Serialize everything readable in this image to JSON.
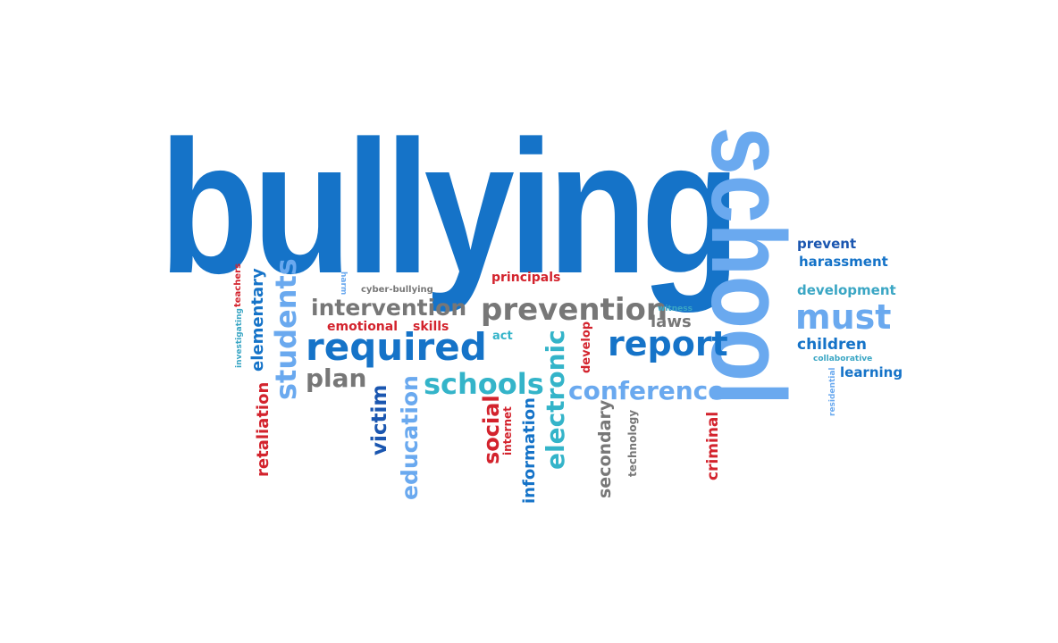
{
  "colors": {
    "blue": "#1573c8",
    "light_blue": "#6aa9ef",
    "navy": "#1a56b0",
    "teal": "#3aa6c4",
    "cyan": "#34b4c9",
    "grey": "#777777",
    "red": "#d3232d"
  },
  "words": {
    "bullying": "bullying",
    "school": "school",
    "prevent": "prevent",
    "harassment": "harassment",
    "development": "development",
    "must": "must",
    "children": "children",
    "collaborative": "collaborative",
    "learning": "learning",
    "residential": "residential",
    "principals": "principals",
    "harm": "harm",
    "cyber_bullying": "cyber-bullying",
    "teachers": "teachers",
    "investigating": "investigating",
    "elementary": "elementary",
    "students": "students",
    "intervention": "intervention",
    "prevention": "prevention",
    "witness": "witness",
    "laws": "laws",
    "emotional": "emotional",
    "skills": "skills",
    "required": "required",
    "act": "act",
    "report": "report",
    "develop": "develop",
    "plan": "plan",
    "schools": "schools",
    "electronic": "electronic",
    "conference": "conference",
    "retaliation": "retaliation",
    "victim": "victim",
    "education": "education",
    "social": "social",
    "internet": "internet",
    "information": "information",
    "secondary": "secondary",
    "technology": "technology",
    "criminal": "criminal"
  }
}
